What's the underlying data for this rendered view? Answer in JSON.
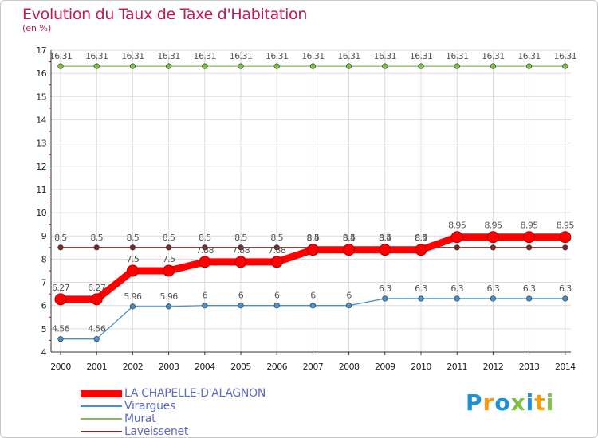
{
  "chart_data": {
    "type": "line",
    "title": "Evolution du Taux de Taxe d'Habitation",
    "ylabel": "(en %)",
    "xlabel": "",
    "ylim": [
      4,
      17
    ],
    "yticks": [
      "4",
      "5",
      "6",
      "7",
      "8",
      "9",
      "10",
      "11",
      "12",
      "13",
      "14",
      "15",
      "16",
      "17"
    ],
    "categories": [
      "2000",
      "2001",
      "2002",
      "2003",
      "2004",
      "2005",
      "2006",
      "2007",
      "2008",
      "2009",
      "2010",
      "2011",
      "2012",
      "2013",
      "2014"
    ],
    "series": [
      {
        "name": "LA CHAPELLE-D'ALAGNON",
        "color": "#ff0000",
        "values": [
          6.27,
          6.27,
          7.5,
          7.5,
          7.88,
          7.88,
          7.88,
          8.4,
          8.4,
          8.4,
          8.4,
          8.95,
          8.95,
          8.95,
          8.95
        ],
        "labels": [
          "6.27",
          "6.27",
          "7.5",
          "7.5",
          "7.88",
          "7.88",
          "7.88",
          "8.4",
          "8.4",
          "8.4",
          "8.4",
          "8.95",
          "8.95",
          "8.95",
          "8.95"
        ]
      },
      {
        "name": "Virargues",
        "color": "#4a90c8",
        "values": [
          4.56,
          4.56,
          5.96,
          5.96,
          6,
          6,
          6,
          6,
          6,
          6.3,
          6.3,
          6.3,
          6.3,
          6.3,
          6.3
        ],
        "labels": [
          "4.56",
          "4.56",
          "5.96",
          "5.96",
          "6",
          "6",
          "6",
          "6",
          "6",
          "6.3",
          "6.3",
          "6.3",
          "6.3",
          "6.3",
          "6.3"
        ]
      },
      {
        "name": "Murat",
        "color": "#7dc242",
        "values": [
          16.31,
          16.31,
          16.31,
          16.31,
          16.31,
          16.31,
          16.31,
          16.31,
          16.31,
          16.31,
          16.31,
          16.31,
          16.31,
          16.31,
          16.31
        ],
        "labels": [
          "16.31",
          "16.31",
          "16.31",
          "16.31",
          "16.31",
          "16.31",
          "16.31",
          "16.31",
          "16.31",
          "16.31",
          "16.31",
          "16.31",
          "16.31",
          "16.31",
          "16.31"
        ]
      },
      {
        "name": "Laveissenet",
        "color": "#7b2a2a",
        "values": [
          8.5,
          8.5,
          8.5,
          8.5,
          8.5,
          8.5,
          8.5,
          8.5,
          8.5,
          8.5,
          8.5,
          8.5,
          8.5,
          8.5,
          8.5
        ],
        "labels": [
          "8.5",
          "8.5",
          "8.5",
          "8.5",
          "8.5",
          "8.5",
          "8.5",
          "8.5",
          "8.5",
          "8.5",
          "8.5",
          "",
          "",
          "",
          ""
        ]
      }
    ]
  },
  "logo": {
    "letters": [
      "P",
      "r",
      "o",
      "x",
      "i",
      "t",
      "i"
    ],
    "colors": [
      "#1f8fd6",
      "#f39c12",
      "#1f8fd6",
      "#7dc242",
      "#1f8fd6",
      "#f39c12",
      "#7dc242"
    ]
  }
}
